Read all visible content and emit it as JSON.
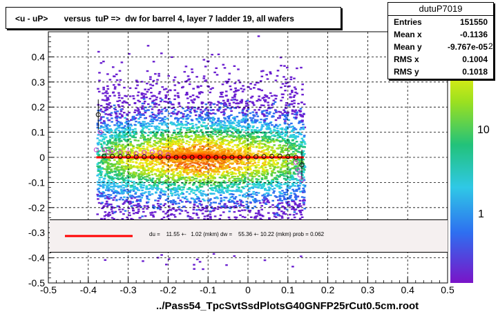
{
  "title": "<u - uP>       versus  tuP =>  dw for barrel 4, layer 7 ladder 19, all wafers",
  "stats": {
    "name": "dutuP7019",
    "rows": [
      {
        "label": "Entries",
        "value": "151550"
      },
      {
        "label": "Mean x",
        "value": "-0.1136"
      },
      {
        "label": "Mean y",
        "value": "-9.767e-05"
      },
      {
        "label": "RMS x",
        "value": "0.1004"
      },
      {
        "label": "RMS y",
        "value": "0.1018"
      }
    ]
  },
  "fit_text": "du =    11.55 +-   1.02 (mkm) dw =    55.36 +- 10.22 (mkm) prob = 0.062",
  "xlabel": "../Pass54_TpcSvtSsdPlotsG40GNFP25rCut0.5cm.root",
  "colorbar": {
    "labels": [
      "10",
      "1"
    ],
    "exponent_label": "2"
  },
  "colors": {
    "fit_line": "#ff0000",
    "profile_black": "#000000",
    "profile_magenta": "#cc33cc"
  },
  "chart_data": {
    "type": "heatmap",
    "xlim": [
      -0.5,
      0.5
    ],
    "ylim": [
      -0.5,
      0.5
    ],
    "xticks": [
      "-0.5",
      "-0.4",
      "-0.3",
      "-0.2",
      "-0.1",
      "0",
      "0.1",
      "0.2",
      "0.3",
      "0.4",
      "0.5"
    ],
    "yticks": [
      "-0.5",
      "-0.4",
      "-0.3",
      "-0.2",
      "-0.1",
      "0",
      "0.1",
      "0.2",
      "0.3",
      "0.4"
    ],
    "grid": true,
    "density_x_range": [
      -0.38,
      0.14
    ],
    "profile_black": {
      "x": [
        -0.375,
        -0.36,
        -0.34,
        -0.32,
        -0.3,
        -0.28,
        -0.26,
        -0.24,
        -0.22,
        -0.2,
        -0.18,
        -0.16,
        -0.14,
        -0.12,
        -0.1,
        -0.08,
        -0.06,
        -0.04,
        -0.02,
        0.0,
        0.02,
        0.04,
        0.06,
        0.08,
        0.1,
        0.12,
        0.135
      ],
      "y": [
        0.17,
        0.005,
        0.004,
        0.003,
        0.003,
        0.002,
        0.002,
        0.001,
        0.001,
        0.0,
        0.0,
        0.0,
        0.0,
        0.0,
        0.0,
        0.0,
        0.0,
        0.0,
        0.0,
        0.001,
        0.002,
        0.003,
        0.004,
        0.005,
        0.003,
        0.0,
        -0.03
      ]
    },
    "profile_magenta": {
      "x": [
        -0.38,
        -0.37,
        -0.36,
        -0.35,
        -0.34,
        -0.32,
        -0.3,
        -0.28,
        -0.26,
        -0.24,
        -0.22,
        -0.2,
        0.12,
        0.125,
        0.13,
        0.135
      ],
      "y": [
        0.03,
        0.1,
        0.03,
        0.02,
        0.025,
        0.02,
        0.018,
        0.015,
        0.02,
        0.022,
        0.018,
        0.01,
        -0.02,
        -0.05,
        -0.07,
        -0.09
      ]
    },
    "fit_line": {
      "x": [
        -0.38,
        0.14
      ],
      "y": [
        0.0,
        0.0
      ]
    }
  }
}
